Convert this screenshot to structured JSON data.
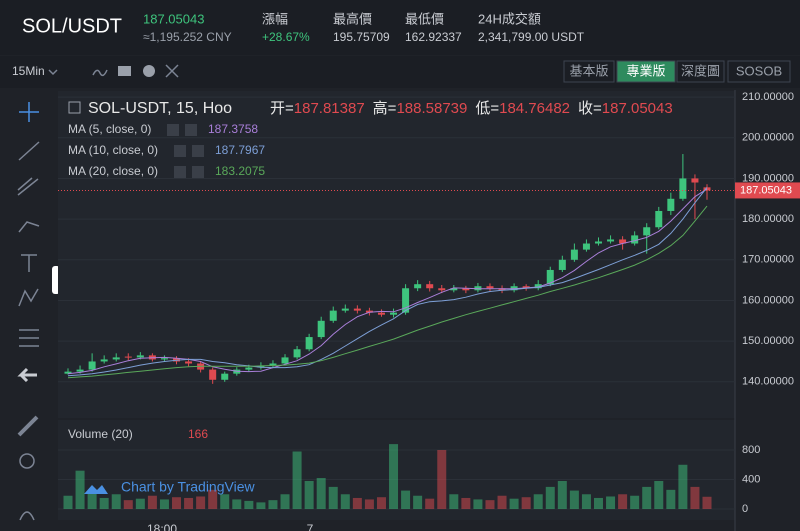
{
  "header": {
    "pair": "SOL/USDT",
    "cny": "≈1,195.252 CNY",
    "stats": [
      {
        "label": "漲幅",
        "value": "+28.67%"
      },
      {
        "label": "最高價",
        "value": "195.75709"
      },
      {
        "label": "最低價",
        "value": "162.92337"
      },
      {
        "label": "24H成交額",
        "value": "2,341,799.00 USDT"
      }
    ]
  },
  "toolbar": {
    "interval": "15Min",
    "tabs": [
      "基本版",
      "專業版",
      "深度圖",
      "SOSOB"
    ]
  },
  "chart_data": {
    "type": "candlestick",
    "title": "SOL-USDT, 15, Hoo",
    "ohlc_labels": [
      "开=",
      "高=",
      "低=",
      "收="
    ],
    "open": [
      142,
      142.5,
      143,
      145,
      145.5,
      146.2,
      146,
      146.5,
      145.5,
      145.8,
      145,
      144.5,
      143,
      140.5,
      142,
      143,
      143.5,
      144,
      144.5,
      146,
      148,
      151,
      155,
      157.5,
      158,
      157.5,
      157,
      156.5,
      157,
      163,
      164,
      163,
      162.5,
      163,
      162.5,
      163.5,
      163,
      162.5,
      163.5,
      163,
      164,
      167.5,
      170,
      172.5,
      174,
      174.5,
      175,
      174,
      176,
      178,
      182,
      185,
      190,
      187.81387
    ],
    "high": [
      143.3,
      144,
      147,
      146.5,
      147,
      147,
      147.3,
      147,
      146.5,
      146.3,
      145.8,
      145,
      143.5,
      142.5,
      143.6,
      144.2,
      144.8,
      145.3,
      146.8,
      148.8,
      151.8,
      156,
      158.5,
      159,
      158.8,
      158.2,
      157.8,
      158,
      164,
      165,
      164.8,
      163.8,
      163.8,
      163.6,
      164.3,
      164.2,
      163.7,
      164.2,
      164,
      165,
      168.3,
      171,
      174,
      175,
      175.5,
      176,
      175.8,
      177,
      179,
      183,
      186.5,
      196,
      191,
      188.58739
    ],
    "low": [
      141.8,
      142,
      142.5,
      144.5,
      145,
      145.3,
      145.5,
      145,
      145,
      144.3,
      143.8,
      142.3,
      139.5,
      140,
      141.5,
      142.5,
      143,
      143.5,
      144,
      145.5,
      147.5,
      150.5,
      154.5,
      157,
      156.8,
      156.3,
      156,
      155.8,
      156.5,
      162.3,
      162.2,
      161.8,
      162,
      161.8,
      162,
      162.3,
      161.8,
      162,
      162.4,
      162.5,
      163.5,
      167,
      169.5,
      172,
      173.5,
      174,
      172.5,
      173.5,
      171.5,
      177.5,
      181,
      184.5,
      180,
      184.76482
    ],
    "close": [
      142.5,
      143,
      145,
      145.5,
      146,
      146,
      146.5,
      145.5,
      145.8,
      145,
      144.5,
      143,
      140.5,
      142,
      143,
      143.5,
      144,
      144.5,
      146,
      148,
      151,
      155,
      157.5,
      158,
      157.5,
      157,
      156.5,
      157,
      163,
      164,
      163,
      162.5,
      163,
      162.5,
      163.5,
      163,
      162.5,
      163.5,
      163,
      164,
      167.5,
      170,
      172.5,
      174,
      174.5,
      175,
      174,
      176,
      178,
      182,
      185,
      190,
      189,
      187.05043
    ],
    "up_color": "#3ec47d",
    "down_color": "#e04a50",
    "ylim": [
      131.1,
      211.5
    ],
    "yticks": [
      {
        "value": 140,
        "label": "140.00000"
      },
      {
        "value": 150,
        "label": "150.00000"
      },
      {
        "value": 160,
        "label": "160.00000"
      },
      {
        "value": 170,
        "label": "170.00000"
      },
      {
        "value": 180,
        "label": "180.00000"
      },
      {
        "value": 190,
        "label": "190.00000"
      },
      {
        "value": 200,
        "label": "200.00000"
      },
      {
        "value": 210,
        "label": "210.00000"
      }
    ],
    "series": [
      {
        "name": "MA (5, close, 0)",
        "color": "#a97fd9",
        "values": [
          142,
          142.3,
          142.8,
          143.7,
          144.4,
          145.2,
          145.8,
          145.9,
          146,
          145.8,
          145.5,
          145,
          143.7,
          143.1,
          142.6,
          142.5,
          142.6,
          143.5,
          144.3,
          145.2,
          146.8,
          148.9,
          151.7,
          154.1,
          156,
          157.1,
          157.3,
          157.2,
          158.2,
          159.5,
          160.7,
          162,
          163.1,
          163,
          162.9,
          162.9,
          162.9,
          162.9,
          163.1,
          163.3,
          164.3,
          165.6,
          167.4,
          169.6,
          171.7,
          173.2,
          174,
          174.7,
          175.5,
          177,
          179.5,
          182.5,
          185.5,
          187.3758
        ]
      },
      {
        "name": "MA (10, close, 0)",
        "color": "#7d9fd6",
        "values": [
          141.5,
          141.7,
          142,
          142.4,
          142.9,
          143.5,
          144.1,
          144.6,
          145,
          145.3,
          145.5,
          145.5,
          145,
          144.7,
          144.2,
          143.9,
          143.6,
          143.5,
          143.5,
          143.7,
          144.2,
          145.5,
          147,
          148.8,
          150.6,
          152.4,
          154,
          155.5,
          157.5,
          159,
          159.7,
          159.9,
          160.2,
          160.8,
          161.6,
          162.2,
          162.5,
          162.7,
          163,
          163.2,
          163.8,
          164.4,
          165.4,
          166.5,
          167.6,
          168.8,
          170,
          171.1,
          172.3,
          173.8,
          176.5,
          180,
          184,
          187.7967
        ]
      },
      {
        "name": "MA (20, close, 0)",
        "color": "#5aa85a",
        "values": [
          141,
          141.2,
          141.4,
          141.7,
          142,
          142.3,
          142.6,
          142.9,
          143.2,
          143.5,
          143.7,
          143.8,
          143.8,
          143.8,
          143.8,
          143.8,
          143.9,
          144,
          144.1,
          144.3,
          144.6,
          145.2,
          146,
          146.9,
          147.8,
          148.7,
          149.6,
          150.5,
          151.6,
          152.7,
          153.7,
          154.7,
          155.6,
          156.5,
          157.3,
          158.1,
          158.9,
          159.7,
          160.5,
          161.3,
          162.2,
          163,
          163.8,
          164.7,
          165.6,
          166.6,
          167.6,
          168.7,
          170,
          171.6,
          173.5,
          176,
          179.5,
          183.2075
        ]
      }
    ],
    "volume": {
      "title": "Volume (20)",
      "values": [
        180,
        520,
        260,
        150,
        200,
        120,
        140,
        180,
        130,
        160,
        150,
        170,
        260,
        200,
        130,
        110,
        90,
        120,
        200,
        780,
        380,
        420,
        300,
        200,
        150,
        130,
        160,
        880,
        250,
        180,
        140,
        800,
        200,
        150,
        130,
        120,
        180,
        140,
        160,
        200,
        300,
        380,
        250,
        200,
        150,
        170,
        200,
        180,
        300,
        380,
        260,
        600,
        300,
        166
      ],
      "ylim": [
        -149,
        1207
      ],
      "yticks": [
        0,
        400,
        800
      ]
    },
    "x_labels": [
      "18:00",
      "7"
    ],
    "watermark": "Chart by TradingView"
  }
}
